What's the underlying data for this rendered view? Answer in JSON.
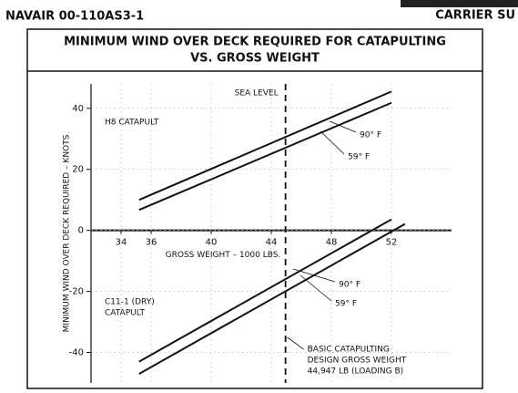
{
  "header": {
    "left": "NAVAIR 00-110AS3-1",
    "right": "CARRIER SU"
  },
  "chart_data": {
    "type": "line",
    "title": "MINIMUM WIND OVER DECK REQUIRED FOR CATAPULTING",
    "subtitle": "VS. GROSS WEIGHT",
    "x_label": "GROSS WEIGHT – 1000 LBS.",
    "y_label": "MINIMUM WIND OVER DECK REQUIRED – KNOTS",
    "xlim": [
      32,
      56
    ],
    "xticks": [
      34,
      36,
      40,
      44,
      48,
      52
    ],
    "ylim": [
      -50,
      48
    ],
    "yticks": [
      -40,
      -20,
      0,
      20,
      40
    ],
    "grid": true,
    "series": [
      {
        "name": "90° F",
        "color": "#111111",
        "x": [
          35.2,
          52
        ],
        "values": [
          10,
          45.5
        ]
      },
      {
        "name": "59° F",
        "color": "#111111",
        "x": [
          35.2,
          52
        ],
        "values": [
          6.7,
          41.8
        ]
      },
      {
        "name": "90° F",
        "color": "#111111",
        "x": [
          35.2,
          52
        ],
        "values": [
          -43,
          3.6
        ]
      },
      {
        "name": "59° F",
        "color": "#111111",
        "x": [
          35.2,
          52.9
        ],
        "values": [
          -47,
          2.1
        ]
      }
    ],
    "vline": {
      "x": 44.947,
      "label": "SEA LEVEL",
      "note": [
        "BASIC CATAPULTING",
        "DESIGN GROSS WEIGHT",
        "44,947 LB (LOADING B)"
      ]
    },
    "annotations": [
      [
        "H8 CATAPULT"
      ],
      [
        "C11-1 (DRY)",
        "CATAPULT"
      ]
    ]
  }
}
